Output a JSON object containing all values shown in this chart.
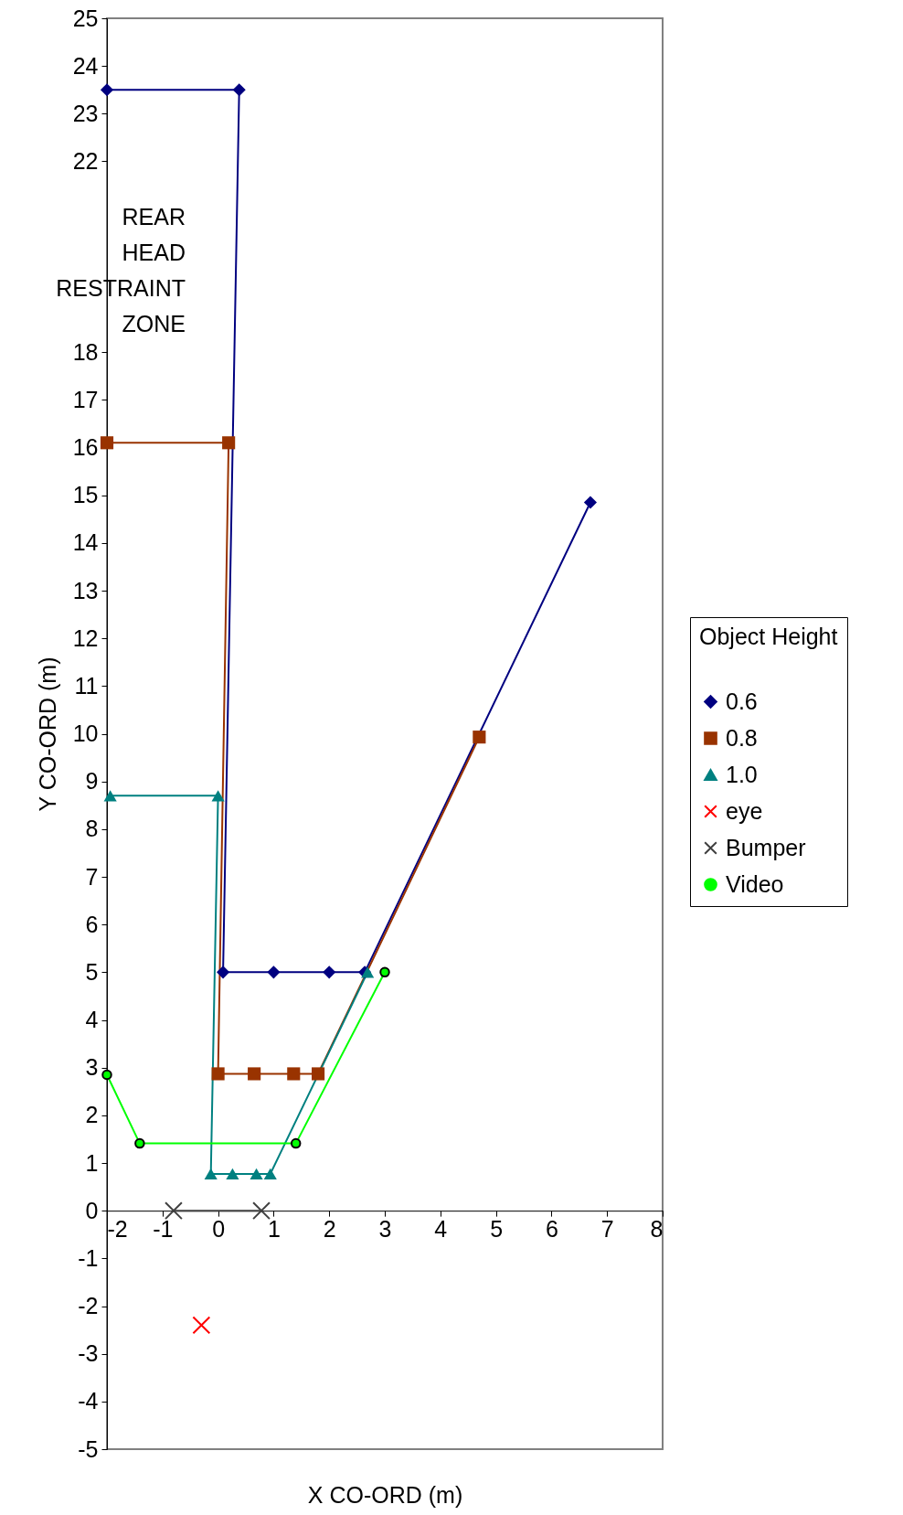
{
  "chart_data": {
    "type": "line",
    "xlabel": "X CO-ORD (m)",
    "ylabel": "Y CO-ORD (m)",
    "legend_title": "Object Height",
    "xlim": [
      -2,
      8
    ],
    "xticks": [
      -2,
      -1,
      0,
      1,
      2,
      3,
      4,
      5,
      6,
      7,
      8
    ],
    "ylim": [
      -5,
      25
    ],
    "yticks": [
      -5,
      -4,
      -3,
      -2,
      -1,
      0,
      1,
      2,
      3,
      4,
      5,
      6,
      7,
      8,
      9,
      10,
      11,
      12,
      13,
      14,
      15,
      16,
      17,
      18,
      22,
      23,
      24,
      25
    ],
    "grid": false,
    "legend": "right",
    "annotations": [
      "REAR\nHEAD\nRESTRAINT\nZONE"
    ],
    "series": [
      {
        "name": "0.6",
        "color": "#000080",
        "marker": "diamond",
        "x": [
          -2,
          0.38,
          0.09,
          1.0,
          2.0,
          2.64,
          6.7
        ],
        "values": [
          23.5,
          23.5,
          5,
          5,
          5,
          5,
          14.85
        ]
      },
      {
        "name": "0.8",
        "color": "#993300",
        "marker": "square",
        "x": [
          -2,
          0.19,
          0.0,
          0.65,
          1.36,
          1.8,
          4.7
        ],
        "values": [
          16.1,
          16.1,
          2.87,
          2.87,
          2.87,
          2.87,
          9.93
        ]
      },
      {
        "name": "1.0",
        "color": "#008080",
        "marker": "triangle",
        "x": [
          -1.94,
          0.0,
          -0.13,
          0.26,
          0.69,
          0.94,
          2.69
        ],
        "values": [
          8.7,
          8.7,
          0.77,
          0.77,
          0.77,
          0.77,
          5
        ]
      },
      {
        "name": "eye",
        "type": "scatter",
        "color": "#ff0000",
        "marker": "cross",
        "x": [
          -0.3
        ],
        "values": [
          -2.4
        ]
      },
      {
        "name": "Bumper",
        "color": "#404040",
        "marker": "cross",
        "x": [
          -0.8,
          0.78
        ],
        "values": [
          0,
          0
        ]
      },
      {
        "name": "Video",
        "color": "#00ff00",
        "marker": "circle",
        "x": [
          -2,
          -1.41,
          1.4,
          3.0
        ],
        "values": [
          2.85,
          1.41,
          1.41,
          5
        ]
      }
    ]
  }
}
